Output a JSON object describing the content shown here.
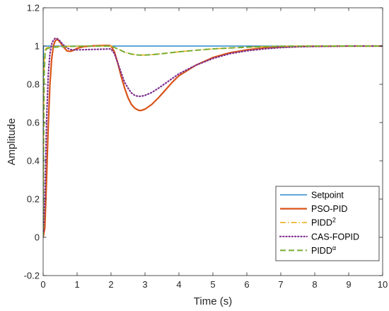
{
  "chart_data": {
    "type": "line",
    "xlabel": "Time (s)",
    "ylabel": "Amplitude",
    "xlim": [
      0,
      10
    ],
    "ylim": [
      -0.2,
      1.2
    ],
    "xticks": [
      0,
      1,
      2,
      3,
      4,
      5,
      6,
      7,
      8,
      9,
      10
    ],
    "yticks": [
      -0.2,
      0,
      0.2,
      0.4,
      0.6,
      0.8,
      1,
      1.2
    ],
    "xtick_labels": [
      "0",
      "1",
      "2",
      "3",
      "4",
      "5",
      "6",
      "7",
      "8",
      "9",
      "10"
    ],
    "ytick_labels": [
      "-0.2",
      "0",
      "0.2",
      "0.4",
      "0.6",
      "0.8",
      "1",
      "1.2"
    ],
    "grid": false,
    "legend_position": "bottom-right",
    "series": [
      {
        "name": "Setpoint",
        "name_sup": "",
        "color": "#0072BD",
        "dash": "solid",
        "width": 1.3,
        "x": [
          0,
          0.01,
          10
        ],
        "y": [
          0,
          1,
          1
        ]
      },
      {
        "name": "PSO-PID",
        "name_sup": "",
        "color": "#D95319",
        "dash": "solid",
        "width": 2.2,
        "x": [
          0,
          0.05,
          0.1,
          0.15,
          0.2,
          0.25,
          0.3,
          0.35,
          0.4,
          0.45,
          0.5,
          0.6,
          0.7,
          0.8,
          0.9,
          1.0,
          1.2,
          1.4,
          1.6,
          1.8,
          1.95,
          2.0,
          2.1,
          2.2,
          2.3,
          2.4,
          2.5,
          2.6,
          2.7,
          2.8,
          2.85,
          2.9,
          3.0,
          3.2,
          3.4,
          3.6,
          3.8,
          4.0,
          4.5,
          5.0,
          5.5,
          6.0,
          6.5,
          7.0,
          7.5,
          8.0,
          9.0,
          10.0
        ],
        "y": [
          0,
          0.05,
          0.3,
          0.58,
          0.8,
          0.93,
          1.0,
          1.025,
          1.035,
          1.03,
          1.02,
          0.995,
          0.975,
          0.972,
          0.978,
          0.988,
          0.997,
          1.0,
          1.002,
          1.003,
          1.003,
          1.0,
          0.97,
          0.91,
          0.84,
          0.78,
          0.73,
          0.695,
          0.675,
          0.665,
          0.663,
          0.664,
          0.67,
          0.695,
          0.73,
          0.77,
          0.81,
          0.845,
          0.9,
          0.94,
          0.965,
          0.98,
          0.99,
          0.995,
          0.998,
          0.999,
          1.0,
          1.0
        ]
      },
      {
        "name": "PIDD",
        "name_sup": "2",
        "color": "#EDB120",
        "dash": "dashdot",
        "width": 1.6,
        "x": [
          0,
          0.01,
          0.03,
          0.06,
          0.1,
          0.2,
          0.4,
          0.6,
          0.8,
          1.0,
          1.5,
          2.0,
          2.2,
          2.4,
          2.6,
          2.8,
          3.0,
          3.2,
          3.5,
          4.0,
          4.5,
          5.0,
          5.5,
          6.0,
          6.5,
          7.0,
          8.0,
          9.0,
          10.0
        ],
        "y": [
          0,
          0.6,
          0.92,
          0.98,
          0.99,
          0.995,
          0.997,
          0.998,
          0.999,
          1.0,
          1.0,
          1.0,
          0.985,
          0.968,
          0.958,
          0.953,
          0.953,
          0.955,
          0.96,
          0.97,
          0.978,
          0.985,
          0.99,
          0.994,
          0.997,
          0.999,
          1.0,
          1.0,
          1.0
        ]
      },
      {
        "name": "CAS-FOPID",
        "name_sup": "",
        "color": "#7E2F8E",
        "dash": "dotted",
        "width": 2.2,
        "x": [
          0,
          0.05,
          0.1,
          0.15,
          0.2,
          0.25,
          0.3,
          0.35,
          0.4,
          0.45,
          0.5,
          0.6,
          0.7,
          0.8,
          0.9,
          1.0,
          1.2,
          1.4,
          1.6,
          1.8,
          2.0,
          2.1,
          2.2,
          2.3,
          2.4,
          2.5,
          2.6,
          2.7,
          2.8,
          2.9,
          3.0,
          3.2,
          3.4,
          3.6,
          3.8,
          4.0,
          4.5,
          5.0,
          5.5,
          6.0,
          6.5,
          7.0,
          7.5,
          8.0,
          9.0,
          10.0
        ],
        "y": [
          0,
          0.2,
          0.6,
          0.85,
          0.96,
          1.01,
          1.03,
          1.04,
          1.04,
          1.035,
          1.025,
          1.005,
          0.99,
          0.982,
          0.98,
          0.98,
          0.981,
          0.982,
          0.983,
          0.984,
          0.985,
          0.96,
          0.91,
          0.86,
          0.81,
          0.78,
          0.755,
          0.742,
          0.737,
          0.738,
          0.742,
          0.757,
          0.78,
          0.805,
          0.83,
          0.855,
          0.9,
          0.935,
          0.96,
          0.975,
          0.985,
          0.992,
          0.996,
          0.998,
          1.0,
          1.0
        ]
      },
      {
        "name": "PIDD",
        "name_sup": "α",
        "color": "#77AC30",
        "dash": "dashed",
        "width": 2.0,
        "x": [
          0,
          0.01,
          0.03,
          0.06,
          0.1,
          0.2,
          0.4,
          0.6,
          0.8,
          1.0,
          1.5,
          2.0,
          2.2,
          2.4,
          2.6,
          2.8,
          3.0,
          3.2,
          3.5,
          4.0,
          4.5,
          5.0,
          5.5,
          6.0,
          6.5,
          7.0,
          8.0,
          9.0,
          10.0
        ],
        "y": [
          0,
          0.4,
          0.85,
          0.97,
          0.985,
          0.992,
          0.995,
          0.997,
          0.998,
          0.999,
          1.0,
          1.0,
          0.985,
          0.968,
          0.958,
          0.953,
          0.953,
          0.955,
          0.96,
          0.97,
          0.978,
          0.985,
          0.99,
          0.994,
          0.997,
          0.999,
          1.0,
          1.0,
          1.0
        ]
      }
    ]
  }
}
